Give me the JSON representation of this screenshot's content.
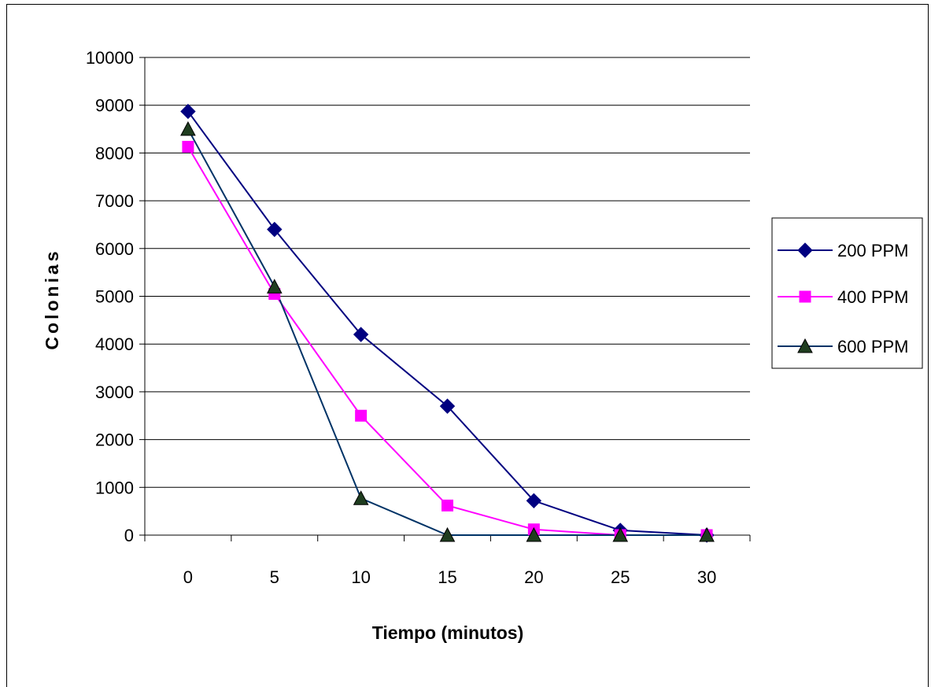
{
  "chart_data": {
    "type": "line",
    "xlabel": "Tiempo (minutos)",
    "ylabel": "Colonias",
    "categories": [
      "0",
      "5",
      "10",
      "15",
      "20",
      "25",
      "30"
    ],
    "ylim": [
      0,
      10000
    ],
    "yticks": [
      "0",
      "1000",
      "2000",
      "3000",
      "4000",
      "5000",
      "6000",
      "7000",
      "8000",
      "9000",
      "10000"
    ],
    "grid": "horizontal",
    "legend_position": "right",
    "series": [
      {
        "name": "200 PPM",
        "values": [
          8870,
          6400,
          4200,
          2700,
          720,
          100,
          0
        ],
        "color": "#000080",
        "marker": "diamond"
      },
      {
        "name": "400 PPM",
        "values": [
          8130,
          5050,
          2500,
          620,
          120,
          0,
          0
        ],
        "color": "#FF00FF",
        "marker": "square"
      },
      {
        "name": "600 PPM",
        "values": [
          8500,
          5200,
          770,
          0,
          0,
          0,
          0
        ],
        "color": "#003366",
        "marker": "triangle"
      }
    ]
  }
}
